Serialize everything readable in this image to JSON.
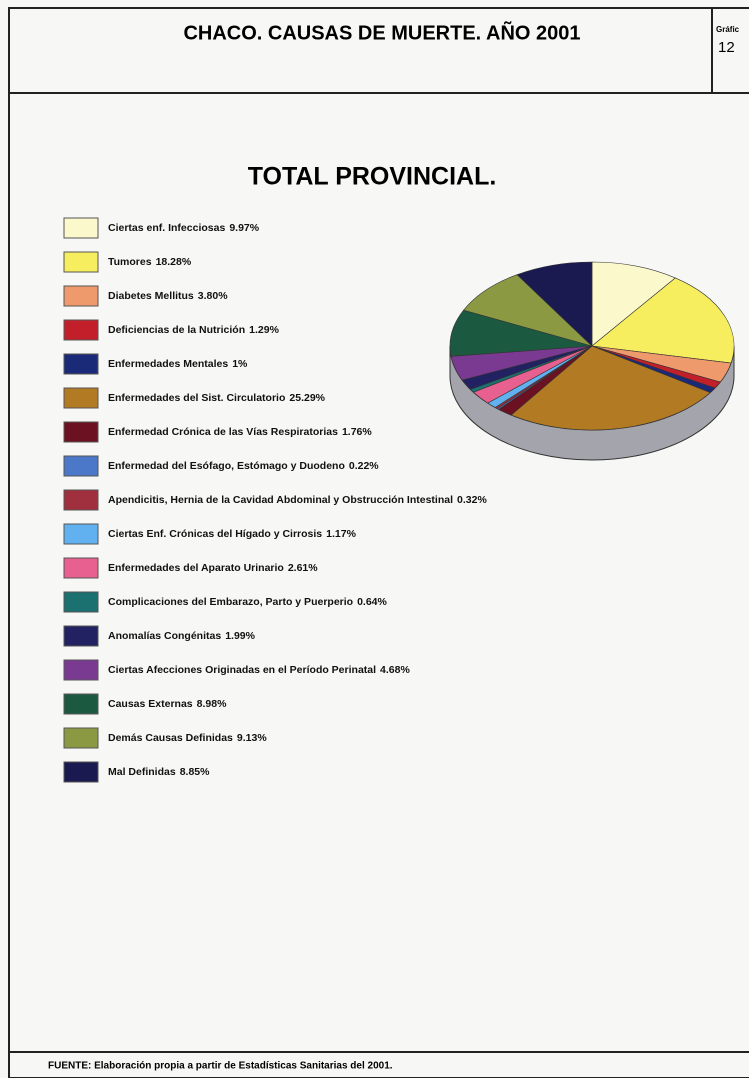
{
  "header": {
    "title": "CHACO. CAUSAS DE MUERTE. AÑO 2001",
    "label": "Gráfic",
    "number": "12"
  },
  "chart_data": {
    "type": "pie",
    "title": "TOTAL PROVINCIAL.",
    "categories": [
      "Ciertas enf. Infecciosas",
      "Tumores",
      "Diabetes Mellitus",
      "Deficiencias de la Nutrición",
      "Enfermedades Mentales",
      "Enfermedades del Sist. Circulatorio",
      "Enfermedad Crónica de las Vías Respiratorias",
      "Enfermedad del Esófago, Estómago y Duodeno",
      "Apendicitis, Hernia de la Cavidad Abdominal y Obstrucción Intestinal",
      "Ciertas Enf. Crónicas del Hígado y Cirrosis",
      "Enfermedades del Aparato Urinario",
      "Complicaciones del Embarazo, Parto y Puerperio",
      "Anomalías Congénitas",
      "Ciertas Afecciones Originadas en el Período Perinatal",
      "Causas Externas",
      "Demás Causas Definidas",
      "Mal Definidas"
    ],
    "values": [
      9.97,
      18.28,
      3.8,
      1.29,
      1,
      25.29,
      1.76,
      0.22,
      0.32,
      1.17,
      2.61,
      0.64,
      1.99,
      4.68,
      8.98,
      9.13,
      8.85
    ],
    "value_labels": [
      "9.97%",
      "18.28%",
      "3.80%",
      "1.29%",
      "1%",
      "25.29%",
      "1.76%",
      "0.22%",
      "0.32%",
      "1.17%",
      "2.61%",
      "0.64%",
      "1.99%",
      "4.68%",
      "8.98%",
      "9.13%",
      "8.85%"
    ],
    "colors": [
      "#fbf8cc",
      "#f6ee5e",
      "#ef9a6c",
      "#c21f2a",
      "#1b2a78",
      "#b27a22",
      "#6b1121",
      "#4b78c8",
      "#a1303f",
      "#61b1f0",
      "#e8608f",
      "#1b7070",
      "#222262",
      "#7b3a91",
      "#1b5a40",
      "#8b9a42",
      "#1b1a50"
    ]
  },
  "footer": {
    "source": "FUENTE: Elaboración propia a partir de Estadísticas Sanitarias del 2001."
  }
}
